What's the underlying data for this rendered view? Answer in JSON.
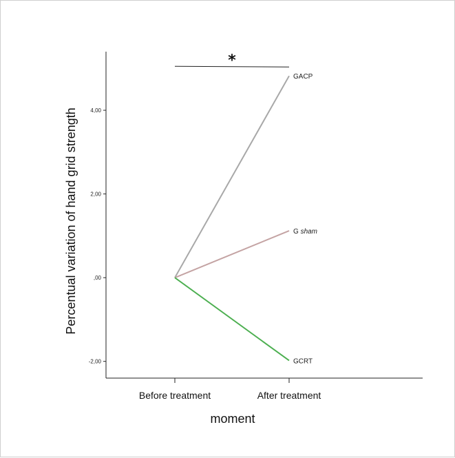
{
  "chart_data": {
    "type": "line",
    "x": [
      "Before treatment",
      "After treatment"
    ],
    "xlabel": "moment",
    "ylabel": "Percentual variation of hand grid strength",
    "ylim": [
      -2.4,
      5.4
    ],
    "yticks": [
      -2.0,
      0.0,
      2.0,
      4.0
    ],
    "ytick_labels": [
      "-2,00",
      ",00",
      "2,00",
      "4,00"
    ],
    "grid": false,
    "series": [
      {
        "name": "GACP",
        "values": [
          0.0,
          4.82
        ],
        "color": "#a8a8a8"
      },
      {
        "name": "G sham",
        "name_prefix": "G ",
        "name_italic": "sham",
        "values": [
          0.0,
          1.12
        ],
        "color": "#c4a3a3"
      },
      {
        "name": "GCRT",
        "values": [
          0.0,
          -1.98
        ],
        "color": "#4caf50"
      }
    ],
    "annotations": [
      {
        "text": "*",
        "type": "significance-bracket",
        "x_from": "Before treatment",
        "x_to": "After treatment",
        "y": 5.05
      }
    ]
  }
}
